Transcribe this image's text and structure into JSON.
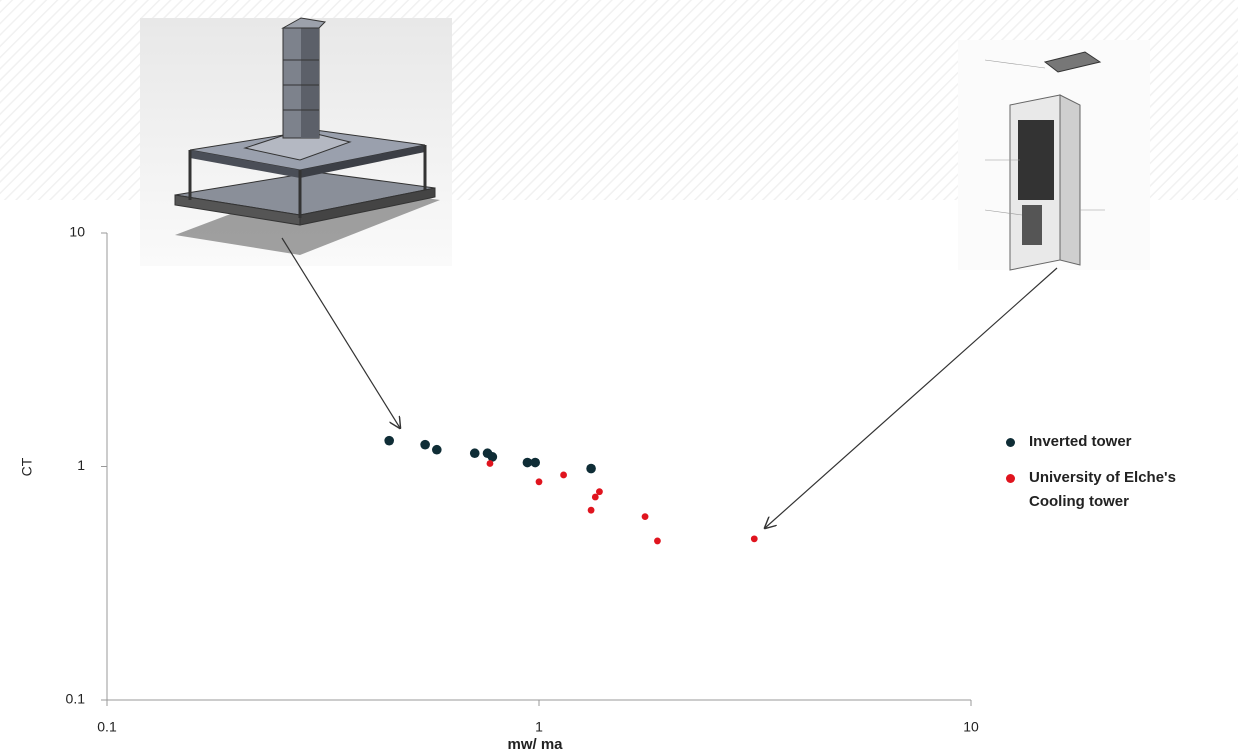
{
  "chart_data": {
    "type": "scatter",
    "y_label": "CT",
    "x_label": "mw/ ma",
    "xscale": "log",
    "yscale": "log",
    "xlim": [
      0.1,
      10
    ],
    "ylim": [
      0.1,
      10
    ],
    "xticks": [
      0.1,
      1,
      10
    ],
    "yticks": [
      0.1,
      1,
      10
    ],
    "series": [
      {
        "name": "Inverted tower",
        "color": "#0f2d36",
        "x": [
          0.45,
          0.545,
          0.58,
          0.71,
          0.76,
          0.78,
          0.94,
          0.98,
          1.32
        ],
        "values": [
          1.29,
          1.24,
          1.18,
          1.14,
          1.14,
          1.1,
          1.04,
          1.04,
          0.98
        ]
      },
      {
        "name": "University of Elche's Cooling tower",
        "color": "#e0141e",
        "x": [
          0.77,
          1.0,
          1.14,
          1.38,
          1.35,
          1.32,
          1.76,
          1.88,
          3.15
        ],
        "values": [
          1.03,
          0.86,
          0.92,
          0.78,
          0.74,
          0.65,
          0.61,
          0.48,
          0.49
        ]
      }
    ]
  }
}
